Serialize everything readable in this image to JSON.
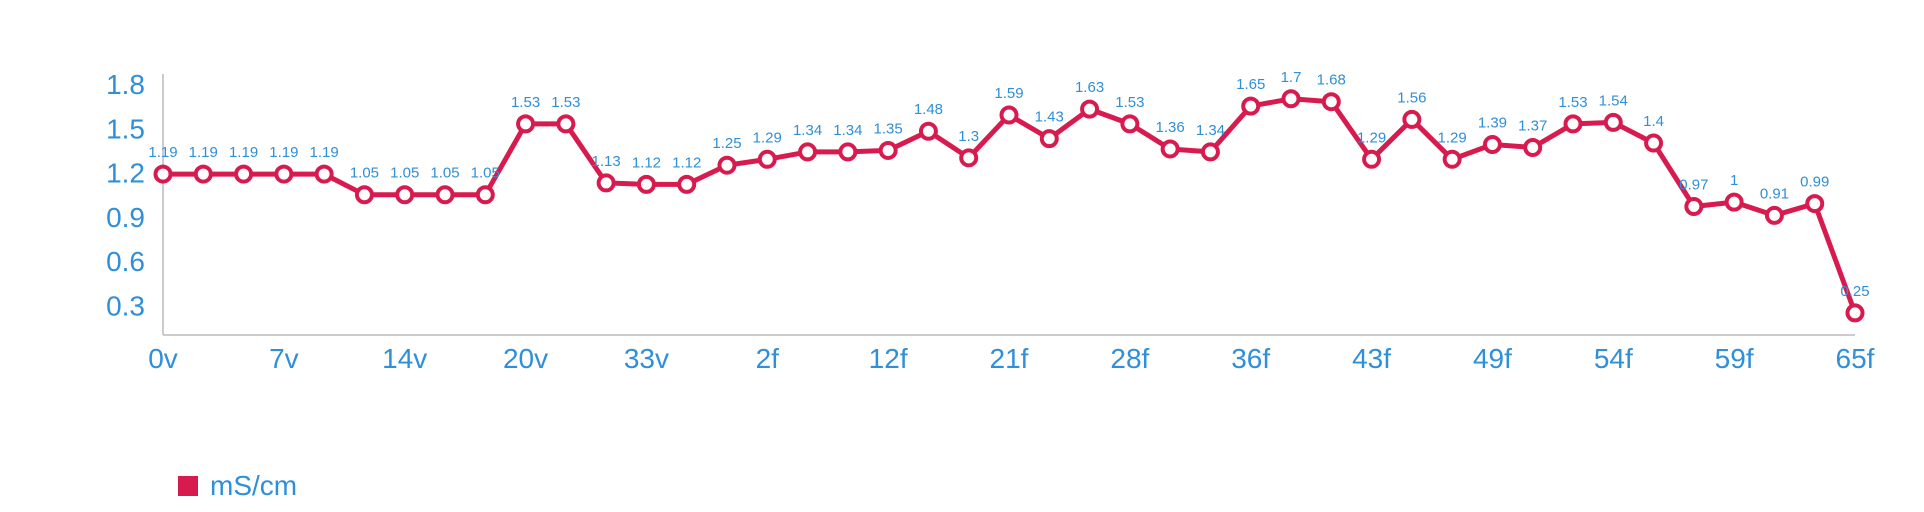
{
  "chart_data": {
    "type": "line",
    "categories": [
      "0v",
      "",
      "",
      "7v",
      "",
      "",
      "14v",
      "",
      "",
      "20v",
      "",
      "",
      "33v",
      "",
      "",
      "2f",
      "",
      "",
      "12f",
      "",
      "",
      "21f",
      "",
      "",
      "28f",
      "",
      "",
      "36f",
      "",
      "",
      "43f",
      "",
      "",
      "49f",
      "",
      "",
      "54f",
      "",
      "",
      "59f",
      "",
      "",
      "65f"
    ],
    "series": [
      {
        "name": "mS/cm",
        "values": [
          1.19,
          1.19,
          1.19,
          1.19,
          1.19,
          1.05,
          1.05,
          1.05,
          1.05,
          1.53,
          1.53,
          1.13,
          1.12,
          1.12,
          1.25,
          1.29,
          1.34,
          1.34,
          1.35,
          1.48,
          1.3,
          1.59,
          1.43,
          1.63,
          1.53,
          1.36,
          1.34,
          1.65,
          1.7,
          1.68,
          1.29,
          1.56,
          1.29,
          1.39,
          1.37,
          1.53,
          1.54,
          1.4,
          0.97,
          1,
          0.91,
          0.99,
          0.25
        ]
      }
    ],
    "yticks": [
      "1.8",
      "1.5",
      "1.2",
      "0.9",
      "0.6",
      "0.3"
    ],
    "ylim": [
      0.1,
      1.8
    ],
    "grid": false,
    "legend": "bottom-left",
    "colors": {
      "series": "#d81b4f",
      "text": "#2f8fd8",
      "axis": "#bbbbbb"
    }
  }
}
